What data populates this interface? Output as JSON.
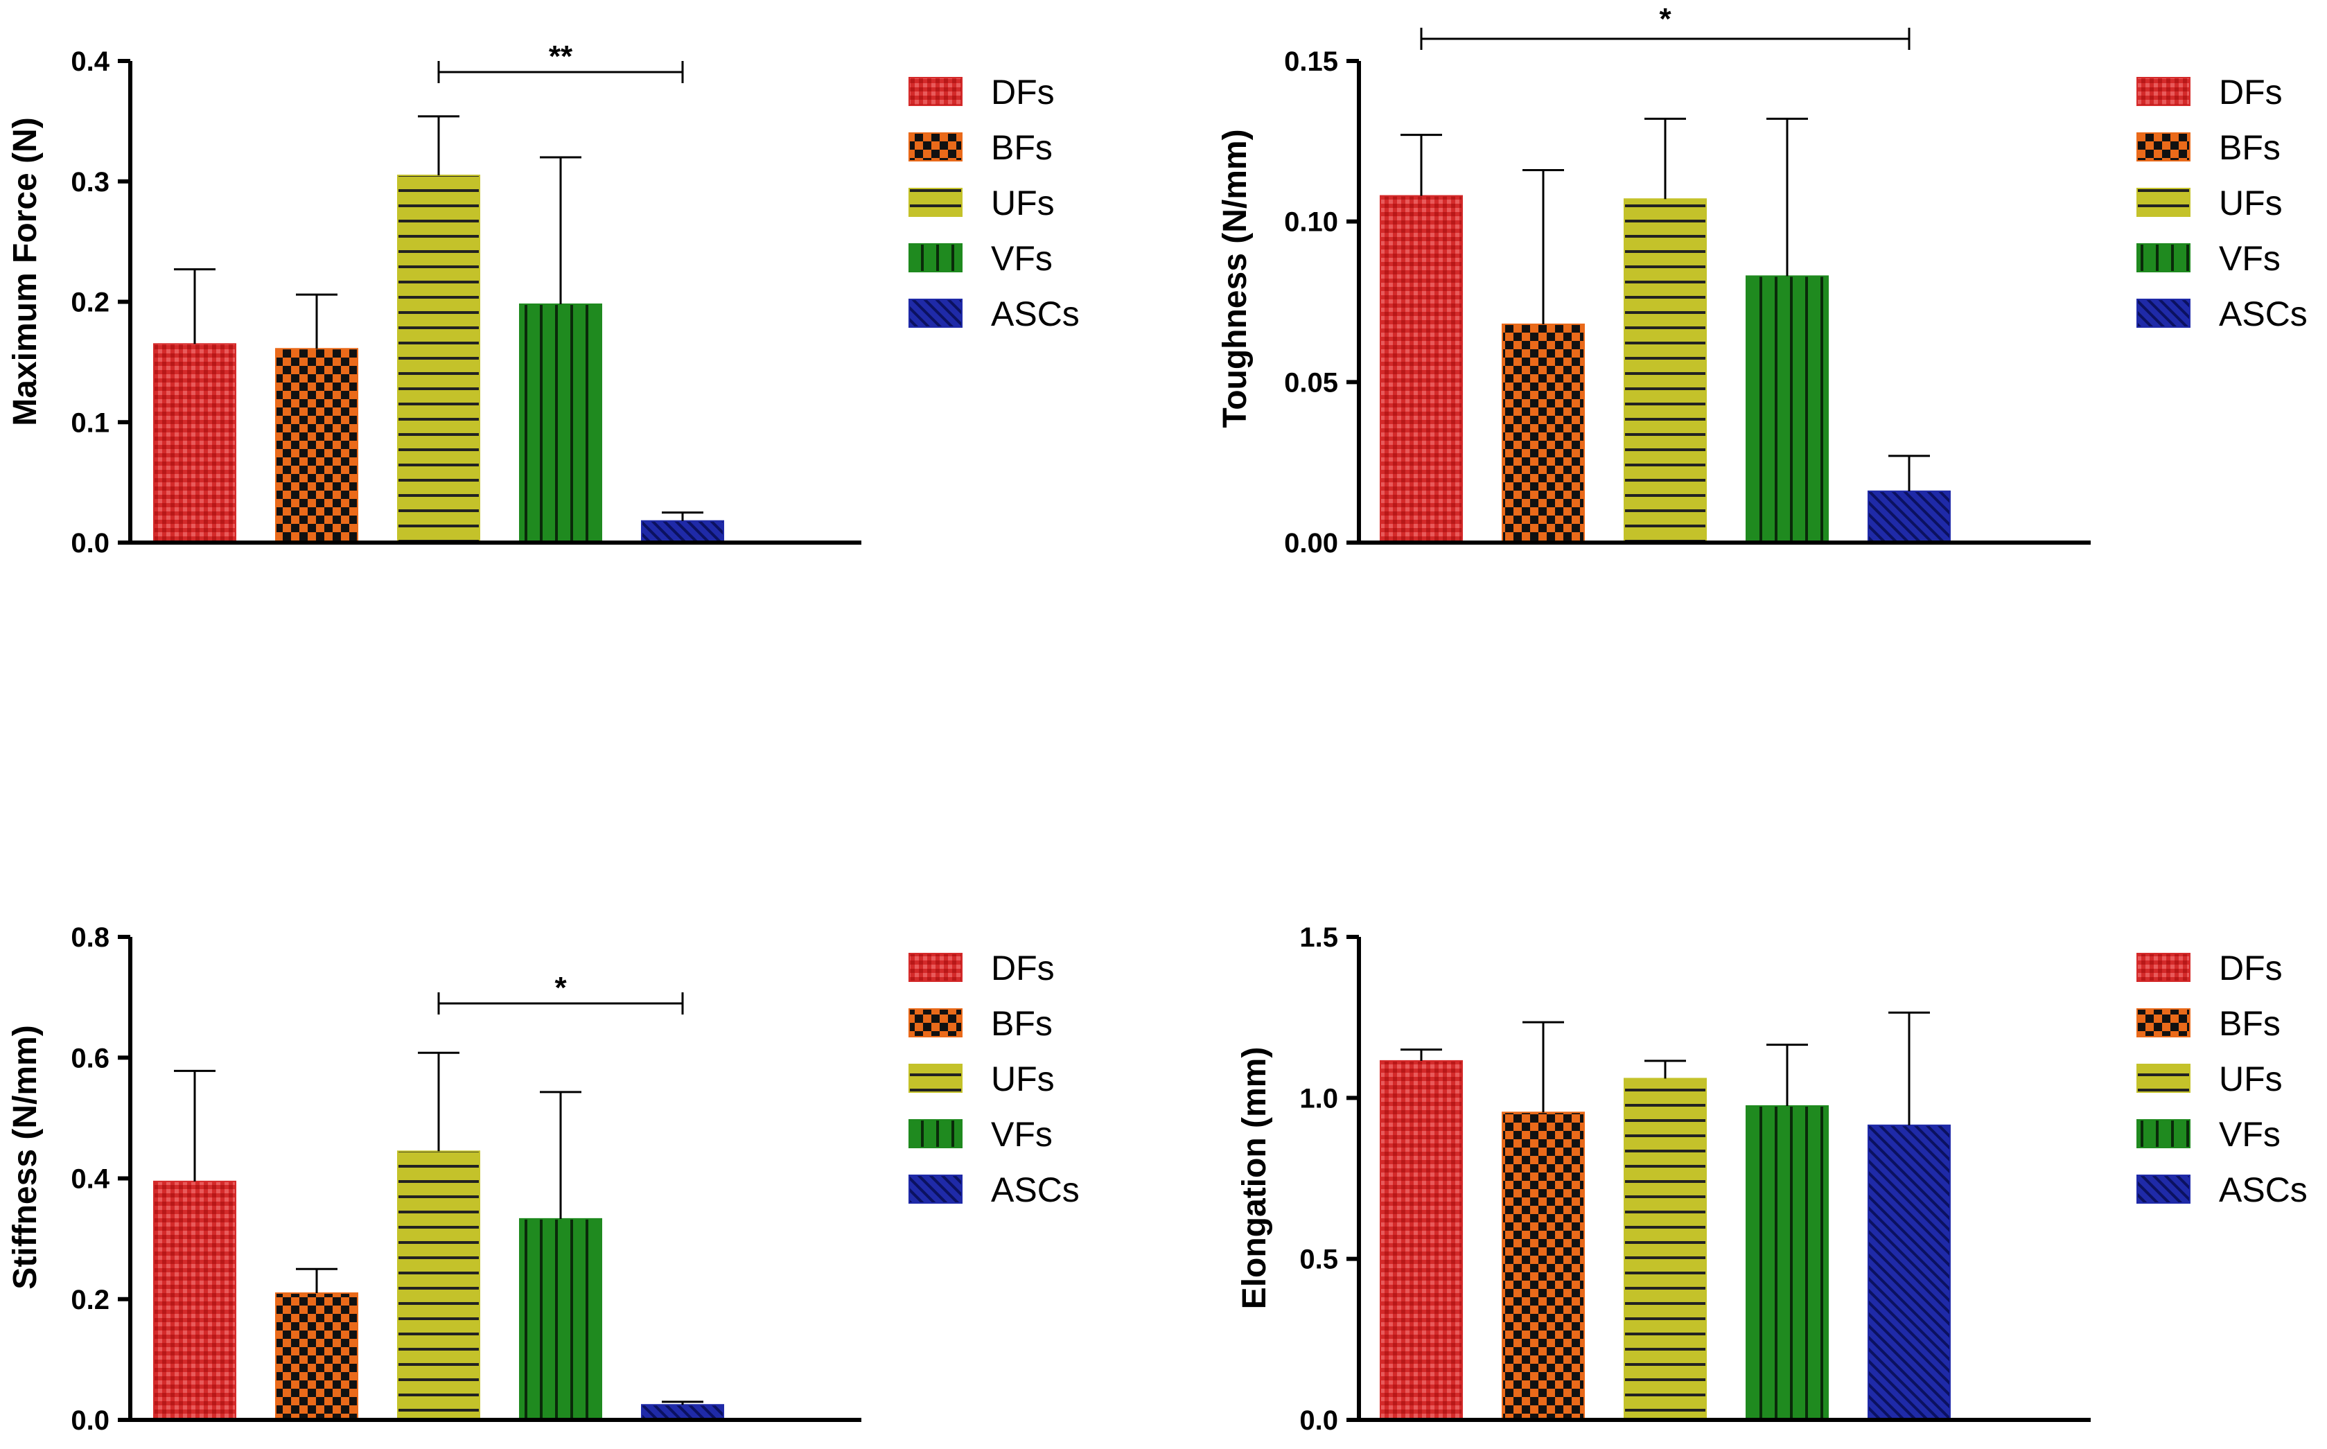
{
  "legend": [
    {
      "key": "DFs",
      "label": "DFs",
      "color": "#d42a2a",
      "pattern": "dots"
    },
    {
      "key": "BFs",
      "label": "BFs",
      "color": "#ea6a1a",
      "pattern": "checker"
    },
    {
      "key": "UFs",
      "label": "UFs",
      "color": "#c4c22a",
      "pattern": "hlines"
    },
    {
      "key": "VFs",
      "label": "VFs",
      "color": "#1f8a1f",
      "pattern": "vlines"
    },
    {
      "key": "ASCs",
      "label": "ASCs",
      "color": "#1f2aa8",
      "pattern": "diag"
    }
  ],
  "chart_data": [
    {
      "type": "bar",
      "title": "",
      "xlabel": "",
      "ylabel": "Maximum Force (N)",
      "categories": [
        "DFs",
        "BFs",
        "UFs",
        "VFs",
        "ASCs"
      ],
      "values": [
        0.165,
        0.161,
        0.305,
        0.198,
        0.018
      ],
      "errors": [
        0.062,
        0.045,
        0.049,
        0.122,
        0.007
      ],
      "ylim": [
        0,
        0.4
      ],
      "yticks": [
        0.0,
        0.1,
        0.2,
        0.3,
        0.4
      ],
      "ytick_labels": [
        "0.0",
        "0.1",
        "0.2",
        "0.3",
        "0.4"
      ],
      "significance": [
        {
          "from": "UFs",
          "to": "ASCs",
          "label": "**"
        }
      ],
      "legend_position": "right"
    },
    {
      "type": "bar",
      "title": "",
      "xlabel": "",
      "ylabel": "Toughness (N/mm)",
      "categories": [
        "DFs",
        "BFs",
        "UFs",
        "VFs",
        "ASCs"
      ],
      "values": [
        0.108,
        0.068,
        0.107,
        0.083,
        0.016
      ],
      "errors": [
        0.019,
        0.048,
        0.025,
        0.049,
        0.011
      ],
      "ylim": [
        0,
        0.15
      ],
      "yticks": [
        0.0,
        0.05,
        0.1,
        0.15
      ],
      "ytick_labels": [
        "0.00",
        "0.05",
        "0.10",
        "0.15"
      ],
      "significance": [
        {
          "from": "DFs",
          "to": "ASCs",
          "label": "*"
        }
      ],
      "legend_position": "right"
    },
    {
      "type": "bar",
      "title": "",
      "xlabel": "",
      "ylabel": "Stiffness (N/mm)",
      "categories": [
        "DFs",
        "BFs",
        "UFs",
        "VFs",
        "ASCs"
      ],
      "values": [
        0.395,
        0.21,
        0.445,
        0.333,
        0.025
      ],
      "errors": [
        0.183,
        0.04,
        0.163,
        0.21,
        0.005
      ],
      "ylim": [
        0,
        0.8
      ],
      "yticks": [
        0.0,
        0.2,
        0.4,
        0.6,
        0.8
      ],
      "ytick_labels": [
        "0.0",
        "0.2",
        "0.4",
        "0.6",
        "0.8"
      ],
      "significance": [
        {
          "from": "UFs",
          "to": "ASCs",
          "label": "*"
        }
      ],
      "legend_position": "right"
    },
    {
      "type": "bar",
      "title": "",
      "xlabel": "",
      "ylabel": "Elongation (mm)",
      "categories": [
        "DFs",
        "BFs",
        "UFs",
        "VFs",
        "ASCs"
      ],
      "values": [
        1.115,
        0.955,
        1.06,
        0.975,
        0.915
      ],
      "errors": [
        0.035,
        0.28,
        0.055,
        0.19,
        0.35
      ],
      "ylim": [
        0,
        1.5
      ],
      "yticks": [
        0.0,
        0.5,
        1.0,
        1.5
      ],
      "ytick_labels": [
        "0.0",
        "0.5",
        "1.0",
        "1.5"
      ],
      "significance": [],
      "legend_position": "right"
    }
  ]
}
